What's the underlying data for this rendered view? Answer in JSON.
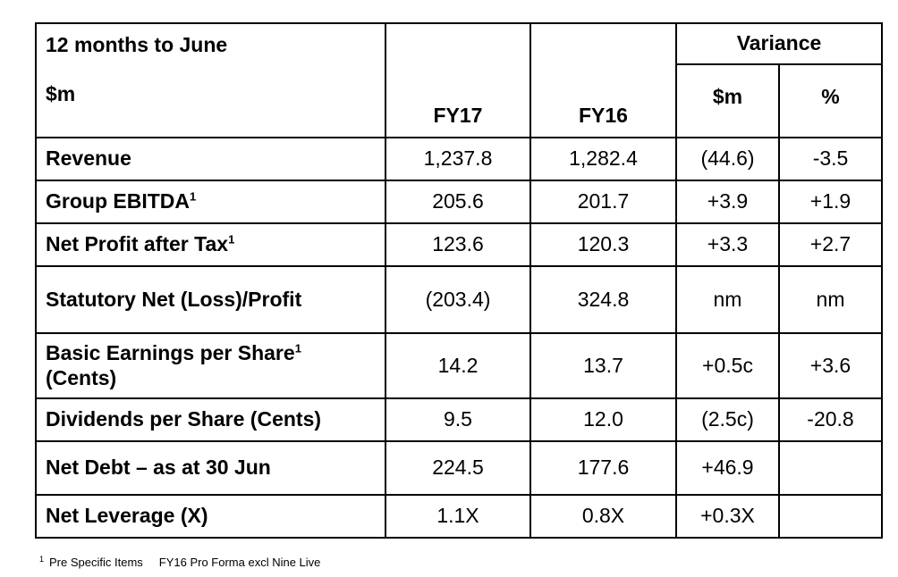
{
  "header": {
    "period": "12 months to June",
    "units": "$m",
    "col_fy17": "FY17",
    "col_fy16": "FY16",
    "variance": "Variance",
    "var_abs": "$m",
    "var_pct": "%"
  },
  "rows": [
    {
      "label": "Revenue",
      "sup": "",
      "fy17": "1,237.8",
      "fy16": "1,282.4",
      "var": "(44.6)",
      "pct": "-3.5"
    },
    {
      "label": "Group EBITDA",
      "sup": "1",
      "fy17": "205.6",
      "fy16": "201.7",
      "var": "+3.9",
      "pct": "+1.9"
    },
    {
      "label": "Net Profit after Tax",
      "sup": "1",
      "fy17": "123.6",
      "fy16": "120.3",
      "var": "+3.3",
      "pct": "+2.7"
    },
    {
      "label": "Statutory Net (Loss)/Profit",
      "sup": "",
      "fy17": "(203.4)",
      "fy16": "324.8",
      "var": "nm",
      "pct": "nm"
    },
    {
      "label": "Basic Earnings per Share",
      "label2": "(Cents)",
      "sup": "1",
      "fy17": "14.2",
      "fy16": "13.7",
      "var": "+0.5c",
      "pct": "+3.6"
    },
    {
      "label": "Dividends per Share (Cents)",
      "sup": "",
      "fy17": "9.5",
      "fy16": "12.0",
      "var": "(2.5c)",
      "pct": "-20.8"
    },
    {
      "label": "Net Debt – as at 30 Jun",
      "sup": "",
      "fy17": "224.5",
      "fy16": "177.6",
      "var": "+46.9",
      "pct": ""
    },
    {
      "label": "Net Leverage (X)",
      "sup": "",
      "fy17": "1.1X",
      "fy16": "0.8X",
      "var": "+0.3X",
      "pct": ""
    }
  ],
  "footnote": {
    "marker": "1",
    "text1": "Pre Specific Items",
    "text2": "FY16 Pro Forma excl Nine Live"
  }
}
